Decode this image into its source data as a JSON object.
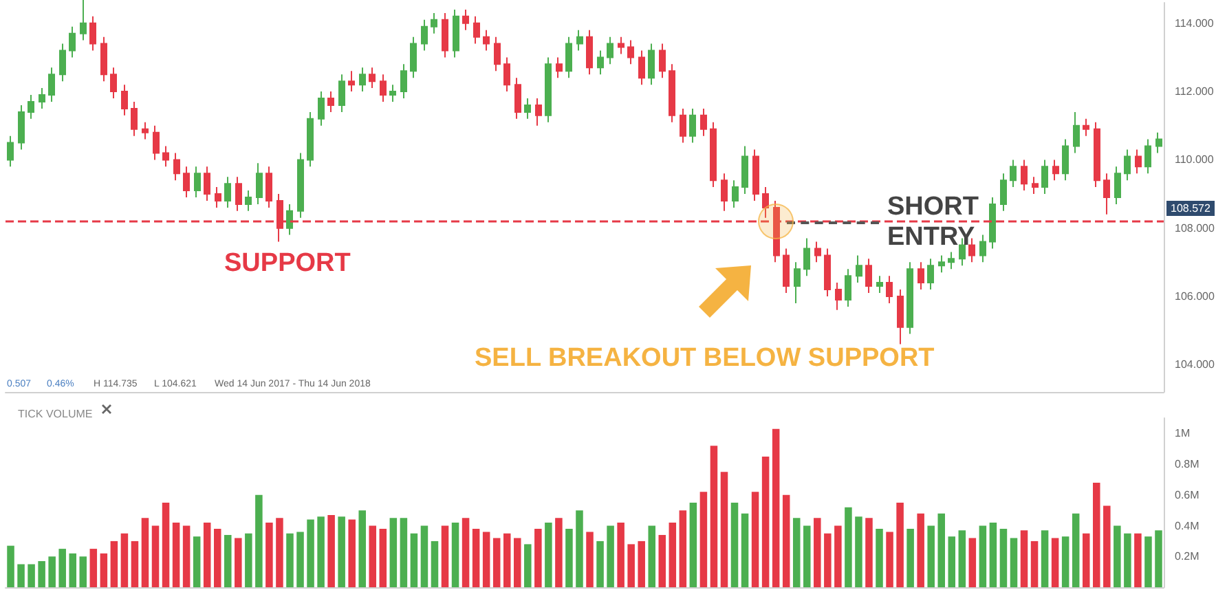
{
  "chart_data": [
    {
      "type": "candlestick",
      "categories": [
        null,
        null,
        null,
        null,
        null,
        null,
        null,
        null,
        null,
        null,
        null,
        null,
        null,
        null,
        null,
        null,
        null,
        null,
        null,
        null,
        null,
        null,
        null,
        null,
        null,
        null,
        null,
        null,
        null,
        null,
        null,
        null,
        null,
        null,
        null,
        null,
        null,
        null,
        null,
        null,
        null,
        null,
        null,
        null,
        null,
        null,
        null,
        null,
        null,
        null,
        null,
        null,
        null,
        null,
        null,
        null,
        null,
        null,
        null,
        null,
        null,
        null,
        null,
        null,
        null,
        null,
        null,
        null,
        null,
        null,
        null,
        null,
        null,
        null,
        null,
        null,
        null,
        null,
        null,
        null,
        null,
        null,
        null,
        null,
        null,
        null,
        null,
        null,
        null,
        null,
        null,
        null,
        null,
        null,
        null,
        null,
        null,
        null,
        null,
        null,
        null,
        null,
        null,
        null,
        null,
        null,
        null,
        null,
        null,
        null,
        null,
        null
      ],
      "ohlc": [
        [
          110.0,
          110.7,
          109.8,
          110.5
        ],
        [
          110.5,
          111.6,
          110.3,
          111.4
        ],
        [
          111.4,
          111.9,
          111.2,
          111.7
        ],
        [
          111.7,
          112.1,
          111.5,
          111.9
        ],
        [
          111.9,
          112.7,
          111.7,
          112.5
        ],
        [
          112.5,
          113.4,
          112.3,
          113.2
        ],
        [
          113.2,
          113.9,
          113.0,
          113.7
        ],
        [
          113.7,
          114.7,
          113.5,
          114.0
        ],
        [
          114.0,
          114.2,
          113.2,
          113.4
        ],
        [
          113.4,
          113.6,
          112.3,
          112.5
        ],
        [
          112.5,
          112.7,
          111.8,
          112.0
        ],
        [
          112.0,
          112.2,
          111.3,
          111.5
        ],
        [
          111.5,
          111.7,
          110.7,
          110.9
        ],
        [
          110.9,
          111.1,
          110.6,
          110.8
        ],
        [
          110.8,
          111.0,
          110.0,
          110.2
        ],
        [
          110.2,
          110.4,
          109.8,
          110.0
        ],
        [
          110.0,
          110.2,
          109.4,
          109.6
        ],
        [
          109.6,
          109.8,
          108.9,
          109.1
        ],
        [
          109.1,
          109.8,
          108.9,
          109.6
        ],
        [
          109.6,
          109.8,
          108.8,
          109.0
        ],
        [
          109.0,
          109.2,
          108.6,
          108.8
        ],
        [
          108.8,
          109.5,
          108.6,
          109.3
        ],
        [
          109.3,
          109.5,
          108.5,
          108.7
        ],
        [
          108.7,
          109.1,
          108.5,
          108.9
        ],
        [
          108.9,
          109.9,
          108.7,
          109.6
        ],
        [
          109.6,
          109.8,
          108.6,
          108.8
        ],
        [
          108.8,
          109.0,
          107.6,
          108.0
        ],
        [
          108.0,
          108.7,
          107.8,
          108.5
        ],
        [
          108.5,
          110.2,
          108.3,
          110.0
        ],
        [
          110.0,
          111.4,
          109.8,
          111.2
        ],
        [
          111.2,
          112.0,
          111.0,
          111.8
        ],
        [
          111.8,
          112.0,
          111.4,
          111.6
        ],
        [
          111.6,
          112.5,
          111.4,
          112.3
        ],
        [
          112.3,
          112.6,
          112.0,
          112.2
        ],
        [
          112.2,
          112.7,
          112.0,
          112.5
        ],
        [
          112.5,
          112.7,
          112.1,
          112.3
        ],
        [
          112.3,
          112.5,
          111.7,
          111.9
        ],
        [
          111.9,
          112.2,
          111.7,
          112.0
        ],
        [
          112.0,
          112.8,
          111.8,
          112.6
        ],
        [
          112.6,
          113.6,
          112.4,
          113.4
        ],
        [
          113.4,
          114.1,
          113.2,
          113.9
        ],
        [
          113.9,
          114.3,
          113.7,
          114.1
        ],
        [
          114.1,
          114.3,
          113.0,
          113.2
        ],
        [
          113.2,
          114.4,
          113.0,
          114.2
        ],
        [
          114.2,
          114.4,
          113.8,
          114.0
        ],
        [
          114.0,
          114.2,
          113.4,
          113.6
        ],
        [
          113.6,
          113.8,
          113.2,
          113.4
        ],
        [
          113.4,
          113.6,
          112.6,
          112.8
        ],
        [
          112.8,
          113.0,
          112.0,
          112.2
        ],
        [
          112.2,
          112.4,
          111.2,
          111.4
        ],
        [
          111.4,
          111.8,
          111.2,
          111.6
        ],
        [
          111.6,
          111.8,
          111.0,
          111.3
        ],
        [
          111.3,
          113.0,
          111.1,
          112.8
        ],
        [
          112.8,
          113.0,
          112.4,
          112.6
        ],
        [
          112.6,
          113.6,
          112.4,
          113.4
        ],
        [
          113.4,
          113.8,
          113.2,
          113.6
        ],
        [
          113.6,
          113.8,
          112.5,
          112.7
        ],
        [
          112.7,
          113.2,
          112.5,
          113.0
        ],
        [
          113.0,
          113.6,
          112.8,
          113.4
        ],
        [
          113.4,
          113.6,
          113.1,
          113.3
        ],
        [
          113.3,
          113.5,
          112.8,
          113.0
        ],
        [
          113.0,
          113.2,
          112.2,
          112.4
        ],
        [
          112.4,
          113.4,
          112.2,
          113.2
        ],
        [
          113.2,
          113.4,
          112.4,
          112.6
        ],
        [
          112.6,
          112.8,
          111.1,
          111.3
        ],
        [
          111.3,
          111.5,
          110.5,
          110.7
        ],
        [
          110.7,
          111.5,
          110.5,
          111.3
        ],
        [
          111.3,
          111.5,
          110.7,
          110.9
        ],
        [
          110.9,
          111.1,
          109.2,
          109.4
        ],
        [
          109.4,
          109.6,
          108.5,
          108.8
        ],
        [
          108.8,
          109.4,
          108.6,
          109.2
        ],
        [
          109.2,
          110.4,
          109.0,
          110.1
        ],
        [
          110.1,
          110.3,
          108.8,
          109.0
        ],
        [
          109.0,
          109.2,
          108.3,
          108.6
        ],
        [
          108.6,
          108.8,
          107.0,
          107.2
        ],
        [
          107.2,
          107.4,
          106.1,
          106.3
        ],
        [
          106.3,
          107.0,
          105.8,
          106.8
        ],
        [
          106.8,
          107.7,
          106.6,
          107.4
        ],
        [
          107.4,
          107.6,
          107.0,
          107.2
        ],
        [
          107.2,
          107.4,
          106.0,
          106.2
        ],
        [
          106.2,
          106.4,
          105.6,
          105.9
        ],
        [
          105.9,
          106.8,
          105.7,
          106.6
        ],
        [
          106.6,
          107.2,
          106.4,
          106.9
        ],
        [
          106.9,
          107.1,
          106.1,
          106.3
        ],
        [
          106.3,
          106.6,
          106.1,
          106.4
        ],
        [
          106.4,
          106.6,
          105.8,
          106.0
        ],
        [
          106.0,
          106.2,
          104.6,
          105.1
        ],
        [
          105.1,
          107.0,
          104.9,
          106.8
        ],
        [
          106.8,
          107.0,
          106.2,
          106.4
        ],
        [
          106.4,
          107.1,
          106.2,
          106.9
        ],
        [
          106.9,
          107.2,
          106.7,
          107.0
        ],
        [
          107.0,
          107.3,
          106.8,
          107.1
        ],
        [
          107.1,
          107.7,
          106.9,
          107.5
        ],
        [
          107.5,
          107.7,
          107.0,
          107.2
        ],
        [
          107.2,
          107.8,
          107.0,
          107.6
        ],
        [
          107.6,
          108.9,
          107.4,
          108.7
        ],
        [
          108.7,
          109.6,
          108.5,
          109.4
        ],
        [
          109.4,
          110.0,
          109.2,
          109.8
        ],
        [
          109.8,
          110.0,
          109.1,
          109.3
        ],
        [
          109.3,
          109.5,
          109.0,
          109.2
        ],
        [
          109.2,
          110.0,
          109.0,
          109.8
        ],
        [
          109.8,
          110.0,
          109.4,
          109.6
        ],
        [
          109.6,
          110.6,
          109.4,
          110.4
        ],
        [
          110.4,
          111.4,
          110.2,
          111.0
        ],
        [
          111.0,
          111.2,
          110.7,
          110.9
        ],
        [
          110.9,
          111.1,
          109.2,
          109.4
        ],
        [
          109.4,
          109.6,
          108.4,
          108.9
        ],
        [
          108.9,
          109.8,
          108.7,
          109.6
        ],
        [
          109.6,
          110.3,
          109.4,
          110.1
        ],
        [
          110.1,
          110.3,
          109.6,
          109.8
        ],
        [
          109.8,
          110.6,
          109.6,
          110.4
        ],
        [
          110.4,
          110.8,
          110.2,
          110.6
        ]
      ],
      "colors": [
        "#4caf50",
        "#4caf50",
        "#4caf50",
        "#4caf50",
        "#4caf50",
        "#4caf50",
        "#4caf50",
        "#4caf50",
        "#e63946",
        "#e63946",
        "#e63946",
        "#e63946",
        "#e63946",
        "#e63946",
        "#e63946",
        "#e63946",
        "#e63946",
        "#e63946",
        "#4caf50",
        "#e63946",
        "#e63946",
        "#4caf50",
        "#e63946",
        "#4caf50",
        "#4caf50",
        "#e63946",
        "#e63946",
        "#4caf50",
        "#4caf50",
        "#4caf50",
        "#4caf50",
        "#e63946",
        "#4caf50",
        "#e63946",
        "#4caf50",
        "#e63946",
        "#e63946",
        "#4caf50",
        "#4caf50",
        "#4caf50",
        "#4caf50",
        "#4caf50",
        "#e63946",
        "#4caf50",
        "#e63946",
        "#e63946",
        "#e63946",
        "#e63946",
        "#e63946",
        "#e63946",
        "#4caf50",
        "#e63946",
        "#4caf50",
        "#e63946",
        "#4caf50",
        "#4caf50",
        "#e63946",
        "#4caf50",
        "#4caf50",
        "#e63946",
        "#e63946",
        "#e63946",
        "#4caf50",
        "#e63946",
        "#e63946",
        "#e63946",
        "#4caf50",
        "#e63946",
        "#e63946",
        "#e63946",
        "#4caf50",
        "#4caf50",
        "#e63946",
        "#e63946",
        "#e63946",
        "#e63946",
        "#4caf50",
        "#4caf50",
        "#e63946",
        "#e63946",
        "#e63946",
        "#4caf50",
        "#4caf50",
        "#e63946",
        "#4caf50",
        "#e63946",
        "#e63946",
        "#4caf50",
        "#e63946",
        "#4caf50",
        "#4caf50",
        "#4caf50",
        "#4caf50",
        "#e63946",
        "#4caf50",
        "#4caf50",
        "#4caf50",
        "#4caf50",
        "#e63946",
        "#e63946",
        "#4caf50",
        "#e63946",
        "#4caf50",
        "#4caf50",
        "#e63946",
        "#e63946",
        "#e63946",
        "#4caf50",
        "#4caf50",
        "#e63946",
        "#4caf50",
        "#4caf50"
      ],
      "ylim": [
        103.2,
        114.6
      ],
      "yticks": [
        {
          "value": 104,
          "label": "104.000"
        },
        {
          "value": 106,
          "label": "106.000"
        },
        {
          "value": 108,
          "label": "108.000"
        },
        {
          "value": 110,
          "label": "110.000"
        },
        {
          "value": 112,
          "label": "112.000"
        },
        {
          "value": 114,
          "label": "114.000"
        }
      ],
      "tick_labels": "y",
      "ref_lines": [
        {
          "axis": "y",
          "value": 108.2,
          "label": "SUPPORT",
          "color": "#e63946",
          "line_style": "dashed"
        }
      ],
      "annotations": [
        "SELL BREAKOUT BELOW SUPPORT",
        {
          "text": "SHORT ENTRY",
          "y": 108.2
        },
        {
          "text": "108.572",
          "y": 108.572
        },
        "0.507",
        "0.46%",
        "H 114.735",
        "L 104.621",
        "Wed 14 Jun 2017 - Thu 14 Jun 2018"
      ]
    },
    {
      "type": "bar",
      "title": "TICK VOLUME",
      "categories": [
        null,
        null,
        null,
        null,
        null,
        null,
        null,
        null,
        null,
        null,
        null,
        null,
        null,
        null,
        null,
        null,
        null,
        null,
        null,
        null,
        null,
        null,
        null,
        null,
        null,
        null,
        null,
        null,
        null,
        null,
        null,
        null,
        null,
        null,
        null,
        null,
        null,
        null,
        null,
        null,
        null,
        null,
        null,
        null,
        null,
        null,
        null,
        null,
        null,
        null,
        null,
        null,
        null,
        null,
        null,
        null,
        null,
        null,
        null,
        null,
        null,
        null,
        null,
        null,
        null,
        null,
        null,
        null,
        null,
        null,
        null,
        null,
        null,
        null,
        null,
        null,
        null,
        null,
        null,
        null,
        null,
        null,
        null,
        null,
        null,
        null,
        null,
        null,
        null,
        null,
        null,
        null,
        null,
        null,
        null,
        null,
        null,
        null,
        null,
        null,
        null,
        null,
        null,
        null,
        null,
        null,
        null,
        null,
        null,
        null,
        null,
        null
      ],
      "values": [
        0.27,
        0.15,
        0.15,
        0.17,
        0.2,
        0.25,
        0.22,
        0.2,
        0.25,
        0.22,
        0.3,
        0.35,
        0.3,
        0.45,
        0.4,
        0.55,
        0.42,
        0.4,
        0.33,
        0.42,
        0.38,
        0.34,
        0.32,
        0.35,
        0.6,
        0.42,
        0.45,
        0.35,
        0.36,
        0.44,
        0.46,
        0.47,
        0.46,
        0.44,
        0.5,
        0.4,
        0.38,
        0.45,
        0.45,
        0.35,
        0.4,
        0.3,
        0.4,
        0.42,
        0.45,
        0.38,
        0.36,
        0.32,
        0.35,
        0.32,
        0.28,
        0.38,
        0.42,
        0.45,
        0.38,
        0.5,
        0.36,
        0.3,
        0.4,
        0.42,
        0.28,
        0.3,
        0.4,
        0.34,
        0.42,
        0.5,
        0.55,
        0.62,
        0.92,
        0.75,
        0.55,
        0.48,
        0.62,
        0.85,
        1.03,
        0.6,
        0.45,
        0.4,
        0.45,
        0.35,
        0.4,
        0.52,
        0.46,
        0.45,
        0.38,
        0.36,
        0.55,
        0.38,
        0.48,
        0.4,
        0.48,
        0.33,
        0.37,
        0.32,
        0.4,
        0.42,
        0.38,
        0.32,
        0.37,
        0.3,
        0.37,
        0.32,
        0.33,
        0.48,
        0.35,
        0.68,
        0.53,
        0.4,
        0.35,
        0.35,
        0.33,
        0.37
      ],
      "colors": [
        "#4caf50",
        "#4caf50",
        "#4caf50",
        "#4caf50",
        "#4caf50",
        "#4caf50",
        "#4caf50",
        "#4caf50",
        "#e63946",
        "#e63946",
        "#e63946",
        "#e63946",
        "#e63946",
        "#e63946",
        "#e63946",
        "#e63946",
        "#e63946",
        "#e63946",
        "#4caf50",
        "#e63946",
        "#e63946",
        "#4caf50",
        "#e63946",
        "#4caf50",
        "#4caf50",
        "#e63946",
        "#e63946",
        "#4caf50",
        "#4caf50",
        "#4caf50",
        "#4caf50",
        "#e63946",
        "#4caf50",
        "#e63946",
        "#4caf50",
        "#e63946",
        "#e63946",
        "#4caf50",
        "#4caf50",
        "#4caf50",
        "#4caf50",
        "#4caf50",
        "#e63946",
        "#4caf50",
        "#e63946",
        "#e63946",
        "#e63946",
        "#e63946",
        "#e63946",
        "#e63946",
        "#4caf50",
        "#e63946",
        "#4caf50",
        "#e63946",
        "#4caf50",
        "#4caf50",
        "#e63946",
        "#4caf50",
        "#4caf50",
        "#e63946",
        "#e63946",
        "#e63946",
        "#4caf50",
        "#e63946",
        "#e63946",
        "#e63946",
        "#4caf50",
        "#e63946",
        "#e63946",
        "#e63946",
        "#4caf50",
        "#4caf50",
        "#e63946",
        "#e63946",
        "#e63946",
        "#e63946",
        "#4caf50",
        "#4caf50",
        "#e63946",
        "#e63946",
        "#e63946",
        "#4caf50",
        "#4caf50",
        "#e63946",
        "#4caf50",
        "#e63946",
        "#e63946",
        "#4caf50",
        "#e63946",
        "#4caf50",
        "#4caf50",
        "#4caf50",
        "#4caf50",
        "#e63946",
        "#4caf50",
        "#4caf50",
        "#4caf50",
        "#4caf50",
        "#e63946",
        "#e63946",
        "#4caf50",
        "#e63946",
        "#4caf50",
        "#4caf50",
        "#e63946",
        "#e63946",
        "#e63946",
        "#4caf50",
        "#4caf50",
        "#e63946",
        "#4caf50",
        "#4caf50"
      ],
      "ylim": [
        0,
        1.1
      ],
      "yticks": [
        {
          "value": 0.2,
          "label": "0.2M"
        },
        {
          "value": 0.4,
          "label": "0.4M"
        },
        {
          "value": 0.6,
          "label": "0.6M"
        },
        {
          "value": 0.8,
          "label": "0.8M"
        },
        {
          "value": 1,
          "label": "1M"
        }
      ],
      "tick_labels": "y"
    }
  ]
}
